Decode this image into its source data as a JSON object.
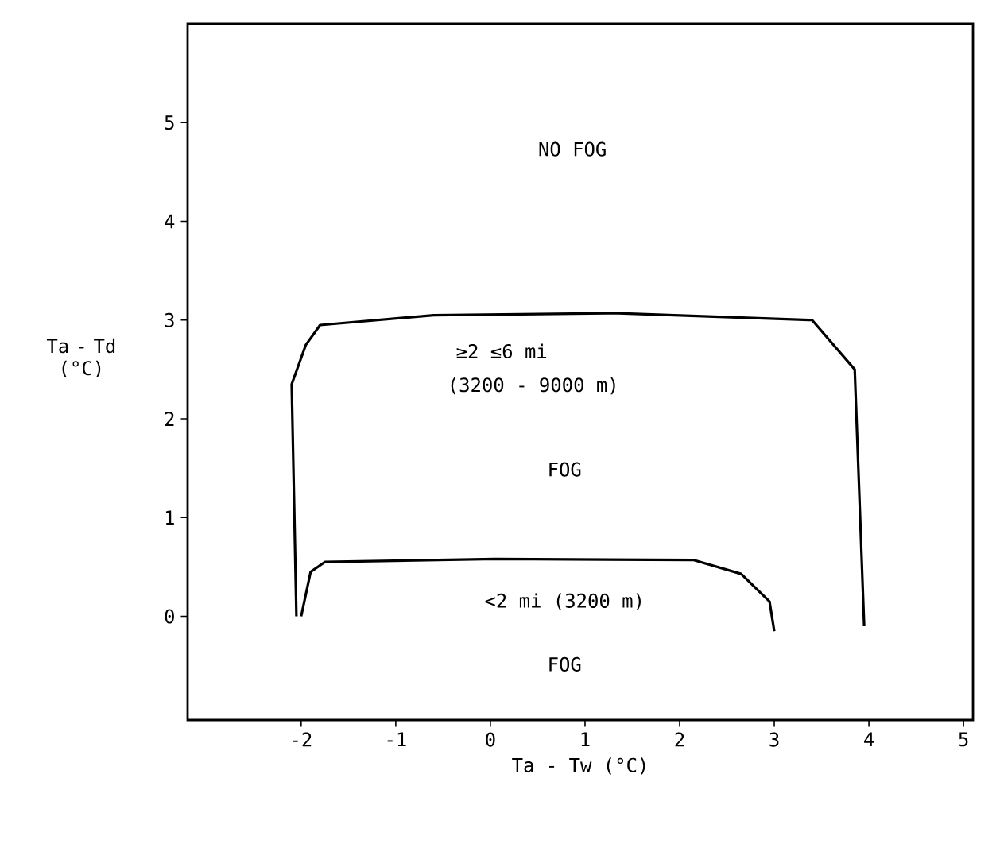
{
  "chart_data": {
    "type": "line",
    "xlabel": "Ta - Tw (°C)",
    "ylabel": "Ta - Td (°C)",
    "series": [
      {
        "color": "#000000",
        "x": [
          -2.05,
          -2.1,
          -1.95,
          -1.8,
          -0.6,
          1.35,
          3.4,
          3.85,
          3.95
        ],
        "values": [
          0,
          2.35,
          2.75,
          2.95,
          3.05,
          3.07,
          3.0,
          2.5,
          -0.1
        ]
      },
      {
        "color": "#000000",
        "x": [
          -2.0,
          -1.9,
          -1.75,
          0.05,
          2.15,
          2.65,
          2.95,
          3.0
        ],
        "values": [
          0,
          0.45,
          0.55,
          0.58,
          0.57,
          0.43,
          0.15,
          -0.15
        ]
      }
    ],
    "xlim": [
      -3.2,
      5.1
    ],
    "ylim": [
      -1.05,
      6.0
    ],
    "xticks": [
      -2,
      -1,
      0,
      1,
      2,
      3,
      4,
      5
    ],
    "yticks": [
      0,
      1,
      2,
      3,
      4,
      5
    ],
    "grid": false,
    "marker": "none",
    "line_style": "solid",
    "annotations": [
      "NO FOG",
      "≥2 ≤6 mi",
      "(3200 - 9000 m)",
      "FOG",
      "<2 mi (3200 m)",
      "FOG"
    ]
  }
}
